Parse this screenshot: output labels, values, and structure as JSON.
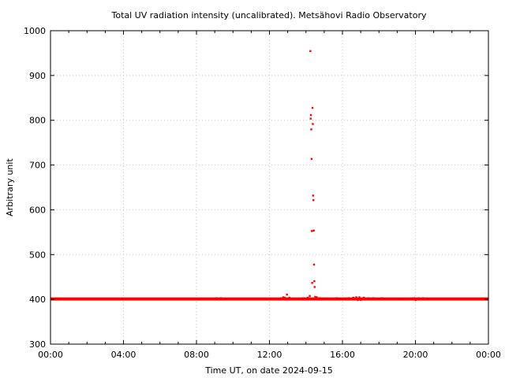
{
  "chart_data": {
    "type": "scatter",
    "title": "Total UV radiation intensity (uncalibrated). Metsähovi Radio Observatory",
    "xlabel": "Time UT, on date 2024-09-15",
    "ylabel": "Arbitrary unit",
    "xlim": [
      "00:00",
      "24:00"
    ],
    "ylim": [
      300,
      1000
    ],
    "x_tick_labels": [
      "00:00",
      "04:00",
      "08:00",
      "12:00",
      "16:00",
      "20:00",
      "00:00"
    ],
    "y_tick_labels": [
      "300",
      "400",
      "500",
      "600",
      "700",
      "800",
      "900",
      "1000"
    ],
    "grid": true,
    "marker_color": "#ff0000",
    "series": [
      {
        "baseline": {
          "value": 401,
          "from": "00:00",
          "to": "24:00"
        },
        "points": [
          {
            "x": "09:05",
            "y": 403
          },
          {
            "x": "09:20",
            "y": 403
          },
          {
            "x": "09:35",
            "y": 402
          },
          {
            "x": "12:40",
            "y": 403
          },
          {
            "x": "12:45",
            "y": 405
          },
          {
            "x": "12:50",
            "y": 404
          },
          {
            "x": "12:57",
            "y": 411
          },
          {
            "x": "13:05",
            "y": 404
          },
          {
            "x": "13:20",
            "y": 402
          },
          {
            "x": "13:50",
            "y": 403
          },
          {
            "x": "14:05",
            "y": 404
          },
          {
            "x": "14:10",
            "y": 403
          },
          {
            "x": "14:12",
            "y": 408
          },
          {
            "x": "14:14",
            "y": 955
          },
          {
            "x": "14:15",
            "y": 804
          },
          {
            "x": "14:16",
            "y": 812
          },
          {
            "x": "14:17",
            "y": 780
          },
          {
            "x": "14:18",
            "y": 714
          },
          {
            "x": "14:19",
            "y": 553
          },
          {
            "x": "14:20",
            "y": 437
          },
          {
            "x": "14:21",
            "y": 828
          },
          {
            "x": "14:22",
            "y": 792
          },
          {
            "x": "14:23",
            "y": 632
          },
          {
            "x": "14:24",
            "y": 622
          },
          {
            "x": "14:25",
            "y": 554
          },
          {
            "x": "14:26",
            "y": 478
          },
          {
            "x": "14:27",
            "y": 441
          },
          {
            "x": "14:28",
            "y": 428
          },
          {
            "x": "14:30",
            "y": 406
          },
          {
            "x": "14:35",
            "y": 405
          },
          {
            "x": "14:45",
            "y": 403
          },
          {
            "x": "15:10",
            "y": 402
          },
          {
            "x": "15:40",
            "y": 403
          },
          {
            "x": "16:00",
            "y": 402
          },
          {
            "x": "16:20",
            "y": 403
          },
          {
            "x": "16:35",
            "y": 404
          },
          {
            "x": "16:45",
            "y": 405
          },
          {
            "x": "16:50",
            "y": 399
          },
          {
            "x": "16:55",
            "y": 405
          },
          {
            "x": "17:00",
            "y": 399
          },
          {
            "x": "17:10",
            "y": 404
          },
          {
            "x": "17:25",
            "y": 403
          },
          {
            "x": "17:40",
            "y": 403
          },
          {
            "x": "18:10",
            "y": 403
          },
          {
            "x": "18:20",
            "y": 402
          },
          {
            "x": "19:55",
            "y": 403
          },
          {
            "x": "20:00",
            "y": 399
          },
          {
            "x": "20:10",
            "y": 403
          },
          {
            "x": "20:25",
            "y": 403
          },
          {
            "x": "20:35",
            "y": 402
          },
          {
            "x": "21:25",
            "y": 402
          }
        ]
      }
    ]
  }
}
